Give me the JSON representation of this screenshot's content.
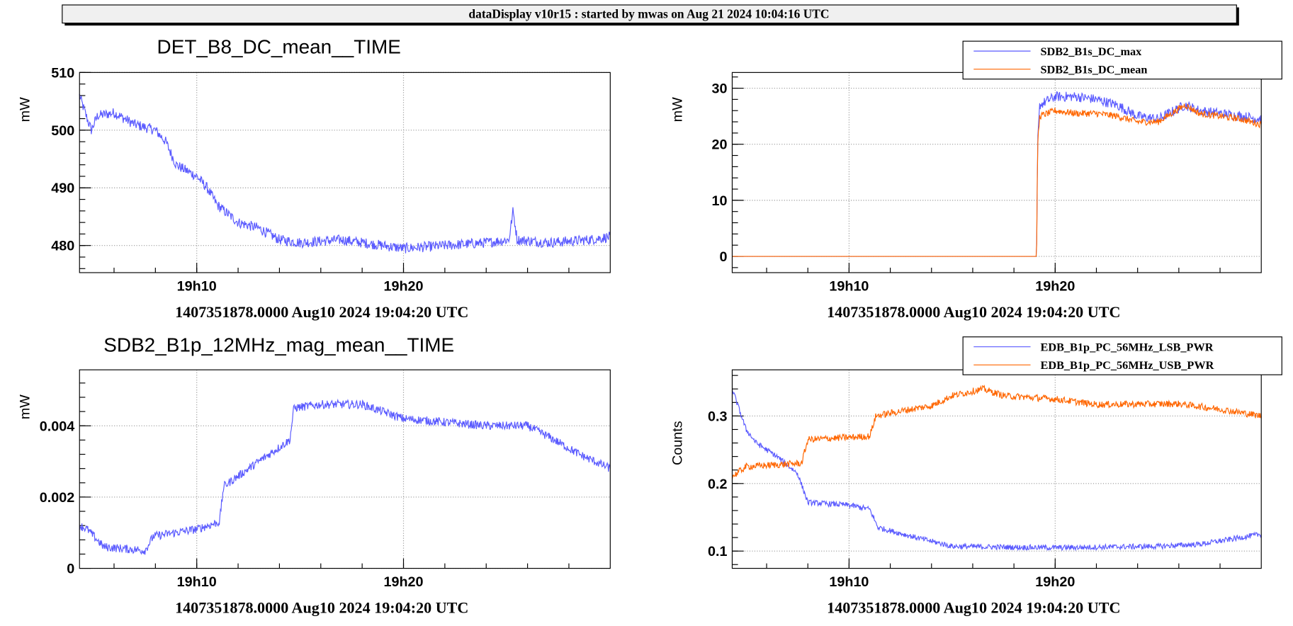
{
  "header": {
    "title": "dataDisplay v10r15 : started by mwas on Aug 21 2024 10:04:16 UTC"
  },
  "chart_data": [
    {
      "type": "line",
      "title": "DET_B8_DC_mean__TIME",
      "ylabel": "mW",
      "xlabel": "1407351878.0000 Aug10 2024 19:04:20 UTC",
      "xlim_minutes": [
        4.33,
        30
      ],
      "ylim": [
        475.3,
        510
      ],
      "yticks": [
        480,
        490,
        500,
        510
      ],
      "ytick_labels": [
        "480",
        "490",
        "500",
        "510"
      ],
      "xticks_minutes": [
        10,
        20
      ],
      "xtick_labels": [
        "19h10",
        "19h20"
      ],
      "legend": null,
      "series": [
        {
          "name": "DET_B8_DC_mean",
          "color": "#5a5aff",
          "noise": 0.9,
          "points": [
            [
              4.33,
              506
            ],
            [
              4.6,
              503
            ],
            [
              4.9,
              500
            ],
            [
              5.2,
              502.5
            ],
            [
              6,
              503
            ],
            [
              7,
              501
            ],
            [
              8,
              500
            ],
            [
              8.5,
              498
            ],
            [
              9,
              494
            ],
            [
              10,
              492
            ],
            [
              10.5,
              490
            ],
            [
              11,
              487
            ],
            [
              12,
              484
            ],
            [
              13,
              483
            ],
            [
              14,
              481
            ],
            [
              15,
              480.5
            ],
            [
              17,
              481
            ],
            [
              19,
              480
            ],
            [
              20,
              479.5
            ],
            [
              22,
              480
            ],
            [
              24,
              480.5
            ],
            [
              25.1,
              481
            ],
            [
              25.3,
              486
            ],
            [
              25.5,
              481
            ],
            [
              27,
              480.5
            ],
            [
              29,
              481
            ],
            [
              30,
              481.5
            ]
          ]
        }
      ]
    },
    {
      "type": "line",
      "title": "",
      "ylabel": "mW",
      "xlabel": "1407351878.0000 Aug10 2024 19:04:20 UTC",
      "xlim_minutes": [
        4.33,
        30
      ],
      "ylim": [
        -2.9,
        32.8
      ],
      "yticks": [
        0,
        10,
        20,
        30
      ],
      "ytick_labels": [
        "0",
        "10",
        "20",
        "30"
      ],
      "xticks_minutes": [
        10,
        20
      ],
      "xtick_labels": [
        "19h10",
        "19h20"
      ],
      "legend": "top-right",
      "series": [
        {
          "name": "SDB2_B1s_DC_max",
          "color": "#5a5aff",
          "noise": 0.9,
          "points": [
            [
              4.33,
              0
            ],
            [
              19.1,
              0
            ],
            [
              19.15,
              20
            ],
            [
              19.25,
              27
            ],
            [
              20,
              28.5
            ],
            [
              21,
              28.5
            ],
            [
              22,
              28
            ],
            [
              23,
              27
            ],
            [
              24,
              25
            ],
            [
              25,
              24.5
            ],
            [
              26.3,
              27
            ],
            [
              27,
              26
            ],
            [
              29,
              25
            ],
            [
              30,
              24.5
            ]
          ]
        },
        {
          "name": "SDB2_B1s_DC_mean",
          "color": "#ff6600",
          "noise": 0.6,
          "points": [
            [
              4.33,
              0
            ],
            [
              19.1,
              0
            ],
            [
              19.15,
              20
            ],
            [
              19.25,
              25
            ],
            [
              20,
              26
            ],
            [
              21,
              25.5
            ],
            [
              22,
              25.5
            ],
            [
              23,
              25
            ],
            [
              24,
              24
            ],
            [
              25,
              24
            ],
            [
              26.3,
              27
            ],
            [
              27,
              25.5
            ],
            [
              29,
              24.5
            ],
            [
              30,
              23.5
            ]
          ]
        }
      ]
    },
    {
      "type": "line",
      "title": "SDB2_B1p_12MHz_mag_mean__TIME",
      "ylabel": "mW",
      "xlabel": "1407351878.0000 Aug10 2024 19:04:20 UTC",
      "xlim_minutes": [
        4.33,
        30
      ],
      "ylim": [
        0,
        0.00557
      ],
      "yticks": [
        0,
        0.002,
        0.004
      ],
      "ytick_labels": [
        "0",
        "0.002",
        "0.004"
      ],
      "xticks_minutes": [
        10,
        20
      ],
      "xtick_labels": [
        "19h10",
        "19h20"
      ],
      "legend": null,
      "series": [
        {
          "name": "SDB2_B1p_12MHz_mag_mean",
          "color": "#5a5aff",
          "noise": 0.00012,
          "points": [
            [
              4.33,
              0.0012
            ],
            [
              4.7,
              0.0011
            ],
            [
              5.5,
              0.0006
            ],
            [
              7.5,
              0.0005
            ],
            [
              7.9,
              0.0009
            ],
            [
              10,
              0.0011
            ],
            [
              11.1,
              0.0013
            ],
            [
              11.3,
              0.0023
            ],
            [
              13,
              0.003
            ],
            [
              14.5,
              0.0036
            ],
            [
              14.7,
              0.0045
            ],
            [
              16,
              0.0046
            ],
            [
              18,
              0.0046
            ],
            [
              20,
              0.0042
            ],
            [
              22,
              0.0041
            ],
            [
              24,
              0.004
            ],
            [
              26,
              0.004
            ],
            [
              27,
              0.0037
            ],
            [
              28.5,
              0.0032
            ],
            [
              30,
              0.0028
            ]
          ]
        }
      ]
    },
    {
      "type": "line",
      "title": "",
      "ylabel": "Counts",
      "xlabel": "1407351878.0000 Aug10 2024 19:04:20 UTC",
      "xlim_minutes": [
        4.33,
        30
      ],
      "ylim": [
        0.0744,
        0.3683
      ],
      "yticks": [
        0.1,
        0.2,
        0.3
      ],
      "ytick_labels": [
        "0.1",
        "0.2",
        "0.3"
      ],
      "xticks_minutes": [
        10,
        20
      ],
      "xtick_labels": [
        "19h10",
        "19h20"
      ],
      "legend": "top-right",
      "series": [
        {
          "name": "EDB_B1p_PC_56MHz_LSB_PWR",
          "color": "#5a5aff",
          "noise": 0.004,
          "points": [
            [
              4.33,
              0.34
            ],
            [
              5,
              0.28
            ],
            [
              5.5,
              0.26
            ],
            [
              6.5,
              0.24
            ],
            [
              7.5,
              0.215
            ],
            [
              8,
              0.172
            ],
            [
              10,
              0.168
            ],
            [
              11,
              0.162
            ],
            [
              11.4,
              0.135
            ],
            [
              13,
              0.122
            ],
            [
              15,
              0.107
            ],
            [
              17,
              0.106
            ],
            [
              20,
              0.105
            ],
            [
              25,
              0.107
            ],
            [
              27,
              0.11
            ],
            [
              30,
              0.125
            ]
          ]
        },
        {
          "name": "EDB_B1p_PC_56MHz_USB_PWR",
          "color": "#ff6600",
          "noise": 0.005,
          "points": [
            [
              4.33,
              0.21
            ],
            [
              5,
              0.225
            ],
            [
              7.7,
              0.23
            ],
            [
              8,
              0.265
            ],
            [
              11,
              0.27
            ],
            [
              11.3,
              0.3
            ],
            [
              13,
              0.31
            ],
            [
              14,
              0.315
            ],
            [
              15,
              0.33
            ],
            [
              16.5,
              0.34
            ],
            [
              17.5,
              0.33
            ],
            [
              20,
              0.325
            ],
            [
              22,
              0.317
            ],
            [
              26,
              0.318
            ],
            [
              28,
              0.31
            ],
            [
              30,
              0.3
            ]
          ]
        }
      ]
    }
  ]
}
